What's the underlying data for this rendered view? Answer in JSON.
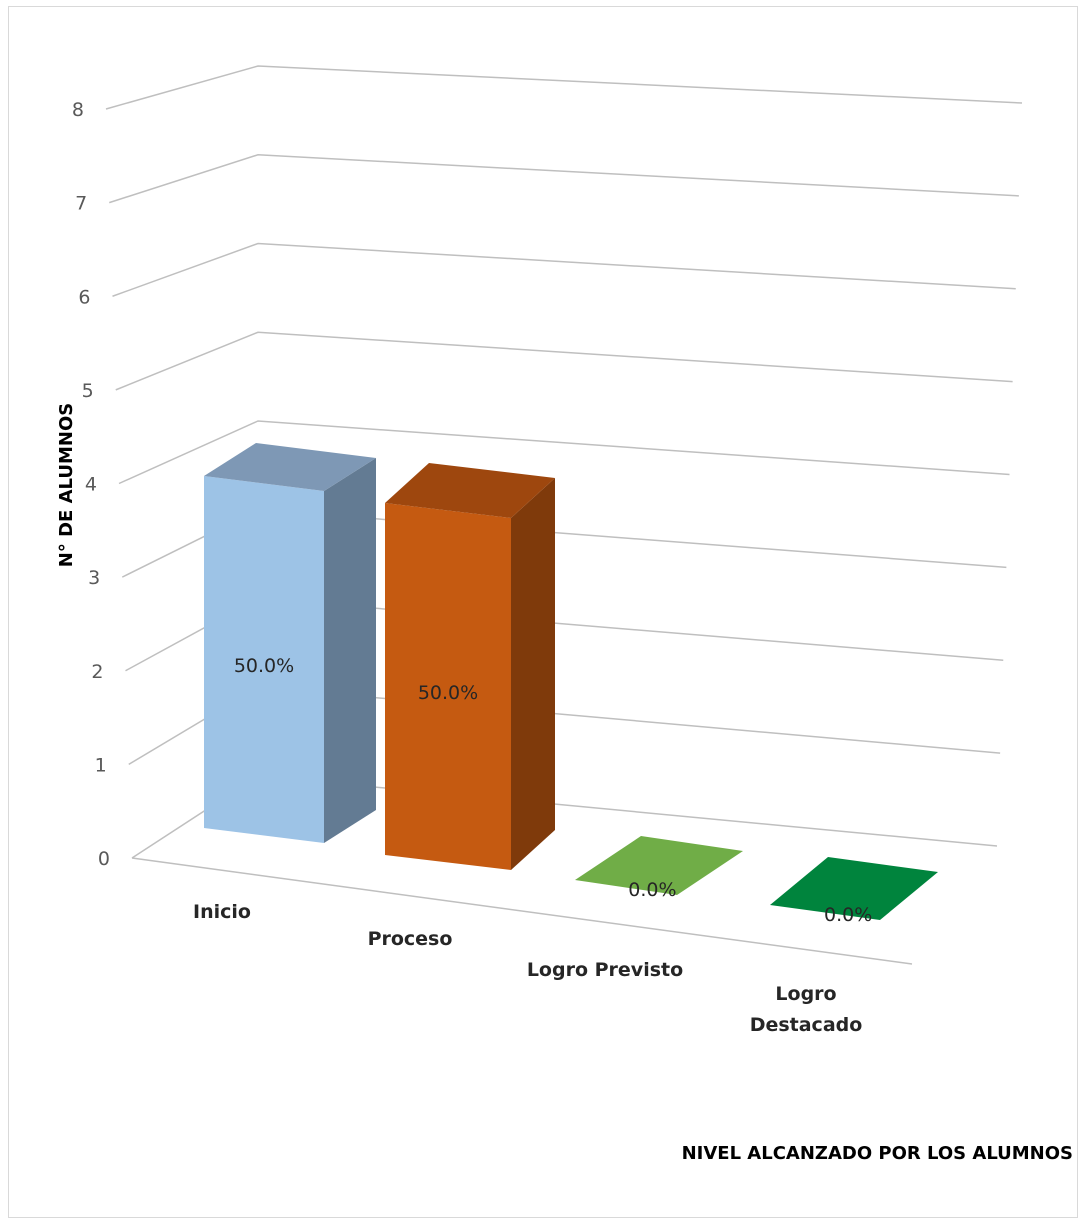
{
  "chart_data": {
    "type": "bar",
    "style": "3d-column",
    "categories": [
      "Inicio",
      "Proceso",
      "Logro Previsto",
      "Logro Destacado"
    ],
    "category_display": [
      [
        "Inicio"
      ],
      [
        "Proceso"
      ],
      [
        "Logro Previsto"
      ],
      [
        "Logro",
        "Destacado"
      ]
    ],
    "values": [
      4,
      4,
      0,
      0
    ],
    "data_labels": [
      "50.0%",
      "50.0%",
      "0.0%",
      "0.0%"
    ],
    "colors": [
      {
        "front": "#9DC3E6",
        "side": "#637B93",
        "top": "#7E98B5"
      },
      {
        "front": "#C55A11",
        "side": "#7F3A0B",
        "top": "#9E470E"
      },
      {
        "front": "#70AD47",
        "side": "#4E7A32",
        "top": "#70AD47"
      },
      {
        "front": "#00843D",
        "side": "#005C2A",
        "top": "#00843D"
      }
    ],
    "xlabel": "NIVEL ALCANZADO POR LOS ALUMNOS",
    "ylabel": "N° DE ALUMNOS",
    "ylim": [
      0,
      8
    ],
    "yticks": [
      "0",
      "1",
      "2",
      "3",
      "4",
      "5",
      "6",
      "7",
      "8"
    ],
    "grid": true,
    "legend": "none"
  }
}
